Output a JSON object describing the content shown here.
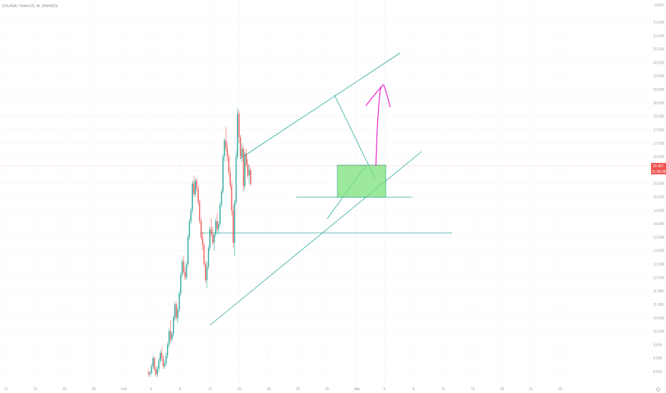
{
  "header": {
    "symbol_title": "SOLANA / TetherUS, 4h, BINANCE",
    "currency": "USDT"
  },
  "colors": {
    "bull": "#26a69a",
    "bear": "#ef5350",
    "trendline": "#26a69a",
    "zone_fill": "#7be07b",
    "zone_border": "#26a69a",
    "arrow": "#e91ec8",
    "price_line": "#ef5350"
  },
  "chart_data": {
    "type": "candlestick",
    "title": "SOLANA / TetherUS, 4h, BINANCE",
    "ylim": [
      8.4,
      21.6
    ],
    "y_ticks": [
      "21.500",
      "21.000",
      "20.500",
      "20.000",
      "19.500",
      "19.000",
      "18.500",
      "18.000",
      "17.500",
      "17.000",
      "16.500",
      "16.000",
      "15.500",
      "15.000",
      "14.500",
      "14.000",
      "13.500",
      "13.000",
      "12.500",
      "12.000",
      "11.500",
      "11.000",
      "10.500",
      "10.000",
      "9.500",
      "9.000",
      "8.500"
    ],
    "x_ticks": [
      "17",
      "21",
      "25",
      "28",
      "Feb",
      "4",
      "8",
      "11",
      "15",
      "18",
      "22",
      "25",
      "Mar",
      "4",
      "8",
      "11",
      "15",
      "18",
      "21",
      "25"
    ],
    "grid": true,
    "current_price": "15.457",
    "countdown": "01:08:28",
    "candles_per_x_tick": 20,
    "ohlc": [
      [
        8.48,
        8.6,
        8.3,
        8.4
      ],
      [
        8.4,
        8.5,
        8.3,
        8.45
      ],
      [
        8.45,
        8.8,
        8.4,
        8.7
      ],
      [
        8.7,
        9.1,
        8.6,
        9.0
      ],
      [
        9.0,
        9.05,
        8.5,
        8.6
      ],
      [
        8.6,
        8.7,
        8.3,
        8.4
      ],
      [
        8.4,
        8.7,
        8.3,
        8.6
      ],
      [
        8.6,
        9.0,
        8.5,
        8.9
      ],
      [
        8.9,
        9.3,
        8.8,
        9.2
      ],
      [
        9.2,
        9.4,
        8.9,
        9.0
      ],
      [
        9.0,
        9.1,
        8.6,
        8.7
      ],
      [
        8.7,
        8.9,
        8.6,
        8.8
      ],
      [
        8.8,
        9.2,
        8.7,
        9.1
      ],
      [
        9.1,
        9.6,
        9.0,
        9.5
      ],
      [
        9.5,
        10.1,
        9.4,
        10.0
      ],
      [
        10.0,
        10.4,
        9.6,
        9.7
      ],
      [
        9.7,
        10.0,
        9.6,
        9.9
      ],
      [
        9.9,
        10.6,
        9.8,
        10.5
      ],
      [
        10.5,
        11.1,
        10.4,
        11.0
      ],
      [
        11.0,
        11.1,
        10.4,
        10.5
      ],
      [
        10.5,
        10.9,
        10.3,
        10.8
      ],
      [
        10.8,
        11.5,
        10.7,
        11.4
      ],
      [
        11.4,
        12.2,
        11.3,
        12.1
      ],
      [
        12.1,
        12.7,
        12.0,
        12.6
      ],
      [
        12.6,
        12.8,
        12.1,
        12.2
      ],
      [
        12.2,
        12.4,
        11.9,
        12.0
      ],
      [
        12.0,
        12.6,
        11.9,
        12.5
      ],
      [
        12.5,
        13.6,
        12.4,
        13.5
      ],
      [
        13.5,
        14.2,
        13.4,
        14.1
      ],
      [
        14.1,
        14.6,
        14.0,
        14.5
      ],
      [
        14.5,
        15.6,
        14.4,
        15.5
      ],
      [
        15.5,
        15.8,
        15.0,
        15.1
      ],
      [
        15.1,
        15.7,
        15.0,
        15.6
      ],
      [
        15.6,
        15.7,
        15.2,
        15.3
      ],
      [
        15.3,
        15.4,
        14.7,
        14.8
      ],
      [
        14.8,
        14.9,
        14.0,
        14.1
      ],
      [
        14.1,
        14.2,
        13.4,
        13.5
      ],
      [
        13.5,
        13.7,
        13.0,
        13.2
      ],
      [
        13.2,
        13.3,
        12.4,
        12.5
      ],
      [
        12.5,
        12.6,
        11.8,
        11.9
      ],
      [
        11.9,
        12.6,
        11.6,
        12.4
      ],
      [
        12.4,
        13.2,
        12.3,
        13.1
      ],
      [
        13.1,
        13.9,
        13.0,
        13.8
      ],
      [
        13.8,
        14.2,
        13.5,
        13.6
      ],
      [
        13.6,
        13.9,
        13.2,
        13.3
      ],
      [
        13.3,
        13.7,
        13.0,
        13.6
      ],
      [
        13.6,
        14.2,
        13.5,
        14.1
      ],
      [
        14.1,
        14.4,
        13.7,
        13.8
      ],
      [
        13.8,
        14.1,
        13.6,
        14.0
      ],
      [
        14.0,
        14.8,
        13.9,
        14.7
      ],
      [
        14.7,
        15.3,
        14.6,
        15.2
      ],
      [
        15.2,
        16.6,
        15.1,
        16.5
      ],
      [
        16.5,
        17.2,
        16.3,
        17.1
      ],
      [
        17.1,
        17.6,
        16.7,
        16.8
      ],
      [
        16.8,
        17.0,
        16.3,
        16.5
      ],
      [
        16.5,
        16.6,
        15.8,
        15.9
      ],
      [
        15.9,
        16.1,
        15.3,
        15.4
      ],
      [
        15.4,
        15.6,
        14.3,
        14.5
      ],
      [
        14.5,
        14.7,
        13.1,
        13.3
      ],
      [
        13.3,
        14.9,
        12.8,
        14.8
      ],
      [
        14.8,
        16.7,
        14.7,
        16.5
      ],
      [
        16.5,
        18.3,
        16.4,
        18.1
      ],
      [
        18.1,
        18.2,
        17.0,
        17.2
      ],
      [
        17.2,
        17.3,
        16.4,
        16.5
      ],
      [
        16.5,
        17.0,
        16.3,
        16.8
      ],
      [
        16.8,
        16.9,
        15.2,
        15.4
      ],
      [
        15.4,
        16.7,
        15.3,
        16.6
      ],
      [
        16.6,
        16.8,
        16.1,
        16.2
      ],
      [
        16.2,
        16.4,
        15.7,
        15.8
      ],
      [
        15.8,
        16.2,
        15.5,
        16.0
      ],
      [
        16.0,
        16.1,
        15.4,
        15.46
      ]
    ]
  }
}
